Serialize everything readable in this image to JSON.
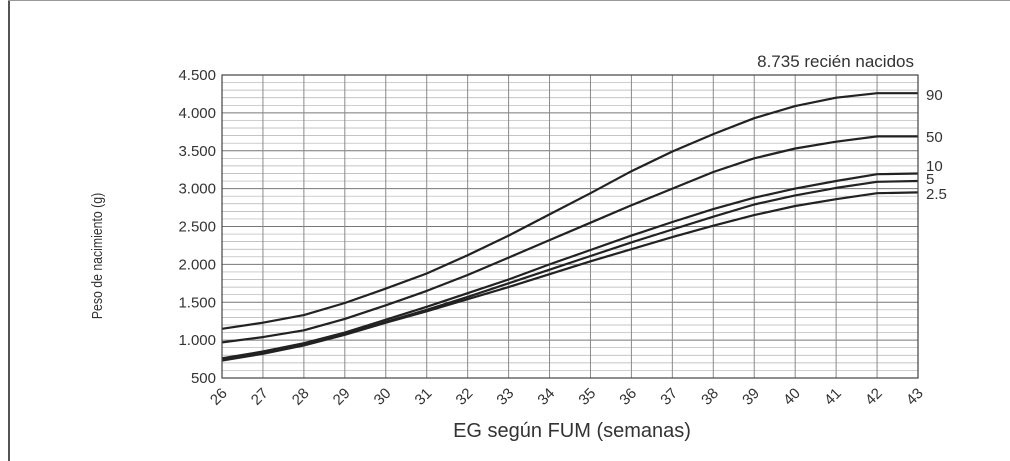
{
  "chart_data": {
    "type": "line",
    "annotation": "8.735 recién nacidos",
    "xlabel": "EG según FUM (semanas)",
    "ylabel": "Peso de nacimiento (g)",
    "x": [
      26,
      27,
      28,
      29,
      30,
      31,
      32,
      33,
      34,
      35,
      36,
      37,
      38,
      39,
      40,
      41,
      42,
      43
    ],
    "x_tick_labels": [
      "26",
      "27",
      "28",
      "29",
      "30",
      "31",
      "32",
      "33",
      "34",
      "35",
      "36",
      "37",
      "38",
      "39",
      "40",
      "41",
      "42",
      "43"
    ],
    "y_tick_labels": [
      "4.500",
      "4.000",
      "3.500",
      "3.000",
      "2.500",
      "2.000",
      "1.500",
      "1.000",
      "500"
    ],
    "y_ticks": [
      4500,
      4000,
      3500,
      3000,
      2500,
      2000,
      1500,
      1000,
      500
    ],
    "xlim": [
      26,
      43
    ],
    "ylim": [
      500,
      4500
    ],
    "grid": true,
    "series": [
      {
        "name": "90",
        "values": [
          1150,
          1230,
          1330,
          1490,
          1680,
          1880,
          2120,
          2380,
          2660,
          2940,
          3230,
          3490,
          3720,
          3930,
          4090,
          4200,
          4260,
          4260
        ]
      },
      {
        "name": "50",
        "values": [
          970,
          1040,
          1130,
          1280,
          1460,
          1650,
          1860,
          2090,
          2320,
          2550,
          2780,
          3000,
          3220,
          3400,
          3530,
          3620,
          3690,
          3690
        ]
      },
      {
        "name": "10",
        "values": [
          760,
          850,
          960,
          1100,
          1270,
          1440,
          1620,
          1800,
          2000,
          2190,
          2380,
          2560,
          2730,
          2880,
          3000,
          3100,
          3190,
          3200
        ]
      },
      {
        "name": "5",
        "values": [
          740,
          830,
          940,
          1080,
          1240,
          1400,
          1570,
          1750,
          1930,
          2110,
          2290,
          2460,
          2630,
          2790,
          2910,
          3010,
          3090,
          3100
        ]
      },
      {
        "name": "2.5",
        "values": [
          730,
          820,
          930,
          1070,
          1230,
          1380,
          1540,
          1700,
          1870,
          2040,
          2200,
          2360,
          2510,
          2650,
          2770,
          2860,
          2940,
          2950
        ]
      }
    ]
  }
}
